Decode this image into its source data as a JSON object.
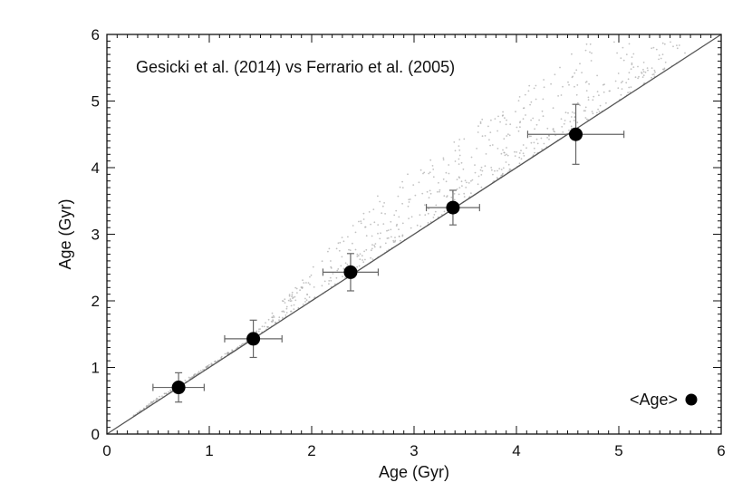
{
  "chart_data": {
    "type": "scatter",
    "title": "Gesicki et al. (2014) vs Ferrario et al. (2005)",
    "xlabel": "Age (Gyr)",
    "ylabel": "Age (Gyr)",
    "xlim": [
      0,
      6
    ],
    "ylim": [
      0,
      6
    ],
    "xticks": [
      0,
      1,
      2,
      3,
      4,
      5,
      6
    ],
    "yticks": [
      0,
      1,
      2,
      3,
      4,
      5,
      6
    ],
    "x_tick_labels": [
      "0",
      "1",
      "2",
      "3",
      "4",
      "5",
      "6"
    ],
    "y_tick_labels": [
      "0",
      "1",
      "2",
      "3",
      "4",
      "5",
      "6"
    ],
    "reference_line": {
      "x": [
        0,
        6
      ],
      "y": [
        0,
        6
      ]
    },
    "legend": {
      "label": "<Age>",
      "placement": "bottom-right"
    },
    "series": [
      {
        "name": "<Age>",
        "marker": "filled-circle",
        "color": "#000000",
        "points": [
          {
            "x": 0.7,
            "y": 0.7,
            "xerr": 0.25,
            "yerr": 0.22
          },
          {
            "x": 1.43,
            "y": 1.43,
            "xerr": 0.28,
            "yerr": 0.28
          },
          {
            "x": 2.38,
            "y": 2.43,
            "xerr": 0.27,
            "yerr": 0.28
          },
          {
            "x": 3.38,
            "y": 3.4,
            "xerr": 0.26,
            "yerr": 0.26
          },
          {
            "x": 4.58,
            "y": 4.5,
            "xerr": 0.47,
            "yerr": 0.45
          }
        ]
      }
    ],
    "scatter_cloud": {
      "color": "#a8a8a8",
      "description_range_x": [
        0.2,
        5.8
      ],
      "note": "dense faint grey point cloud lying on and above the 1:1 line"
    }
  },
  "colors": {
    "axis": "#111111",
    "reference_line": "#555555",
    "cloud": "#a8a8a8",
    "marker": "#000000",
    "errorbar": "#666666"
  }
}
